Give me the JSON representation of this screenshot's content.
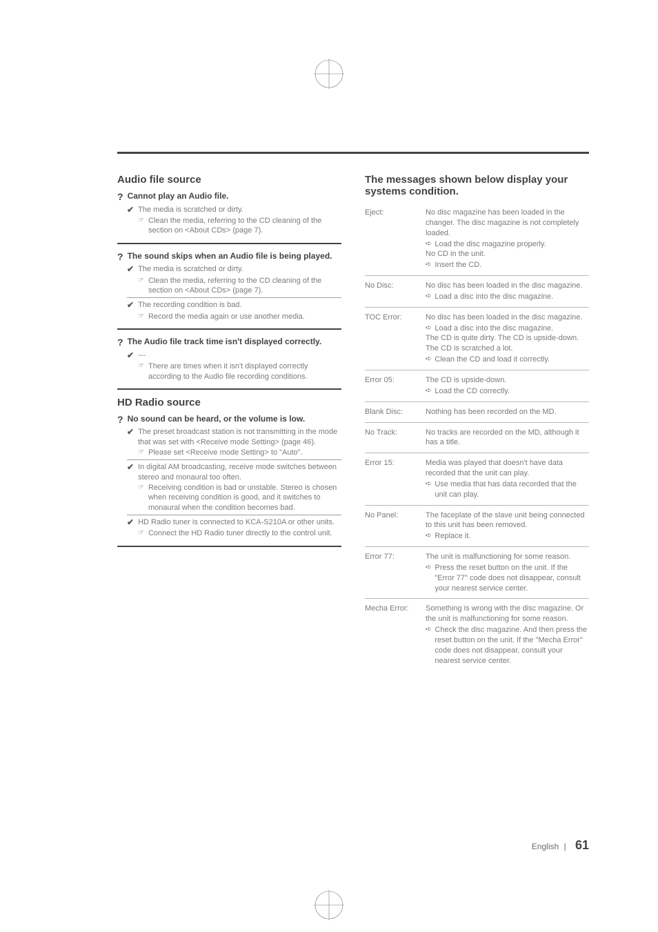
{
  "left": {
    "sectionA": {
      "title": "Audio file source",
      "items": [
        {
          "q": "Cannot play an Audio file.",
          "causes": [
            {
              "cause": "The media is scratched or dirty.",
              "remedies": [
                "Clean the media, referring to the CD cleaning of the section on <About CDs> (page 7)."
              ]
            }
          ]
        },
        {
          "q": "The sound skips when an Audio file is being played.",
          "causes": [
            {
              "cause": "The media is scratched or dirty.",
              "remedies": [
                "Clean the media, referring to the CD cleaning of the section on <About CDs> (page 7)."
              ]
            },
            {
              "cause": "The recording condition is bad.",
              "remedies": [
                "Record the media again or use another media."
              ]
            }
          ]
        },
        {
          "q": "The Audio file track time isn't displayed correctly.",
          "causes": [
            {
              "cause": "---",
              "remedies": [
                "There are times when it isn't displayed correctly according to the Audio file recording conditions."
              ]
            }
          ]
        }
      ]
    },
    "sectionB": {
      "title": "HD Radio source",
      "items": [
        {
          "q": "No sound can be heard, or the volume is low.",
          "causes": [
            {
              "cause": "The preset broadcast station is not transmitting in the mode that was set with <Receive mode Setting> (page 46).",
              "remedies": [
                "Please set <Receive mode Setting> to \"Auto\"."
              ]
            },
            {
              "cause": "In digital AM broadcasting, receive mode switches between stereo and monaural too often.",
              "remedies": [
                "Receiving condition is bad or unstable. Stereo is chosen when receiving condition is good, and it switches to monaural when the condition becomes bad."
              ]
            },
            {
              "cause": "HD Radio tuner is connected to KCA-S210A or other units.",
              "remedies": [
                "Connect the HD Radio tuner directly to the control unit."
              ]
            }
          ]
        }
      ]
    }
  },
  "right": {
    "title": "The messages shown below display your systems condition.",
    "rows": [
      {
        "label": "Eject:",
        "body": "No disc magazine has been loaded in the changer. The disc magazine is not completely loaded.",
        "actions": [
          "Load the disc magazine properly."
        ],
        "body2": "No CD in the unit.",
        "actions2": [
          "Insert the CD."
        ]
      },
      {
        "label": "No Disc:",
        "body": "No disc has been loaded in the disc magazine.",
        "actions": [
          "Load a disc into the disc magazine."
        ]
      },
      {
        "label": "TOC Error:",
        "body": "No disc has been loaded in the disc magazine.",
        "actions": [
          "Load a disc into the disc magazine."
        ],
        "body2": "The CD is quite dirty. The CD is upside-down. The CD is scratched a lot.",
        "actions2": [
          "Clean the CD and load it correctly."
        ]
      },
      {
        "label": "Error 05:",
        "body": "The CD is upside-down.",
        "actions": [
          "Load the CD correctly."
        ]
      },
      {
        "label": "Blank Disc:",
        "body": "Nothing has been recorded on the MD."
      },
      {
        "label": "No Track:",
        "body": "No tracks are recorded on the MD, although it has a title."
      },
      {
        "label": "Error 15:",
        "body": "Media was played that doesn't have data recorded that the unit can play.",
        "actions": [
          "Use media that has data recorded that the unit can play."
        ]
      },
      {
        "label": "No Panel:",
        "body": "The faceplate of the slave unit being connected to this unit has been removed.",
        "actions": [
          "Replace it."
        ]
      },
      {
        "label": "Error 77:",
        "body": "The unit is malfunctioning for some reason.",
        "actions": [
          "Press the reset button on the unit. If the \"Error 77\" code does not disappear, consult your nearest service center."
        ]
      },
      {
        "label": "Mecha Error:",
        "body": "Something is wrong with the disc magazine. Or the unit is malfunctioning for some reason.",
        "actions": [
          "Check the disc magazine. And then press the reset button on the unit. If the \"Mecha Error\" code does not disappear, consult your nearest service center."
        ]
      }
    ]
  },
  "footer": {
    "lang": "English",
    "sep": "|",
    "page": "61"
  }
}
